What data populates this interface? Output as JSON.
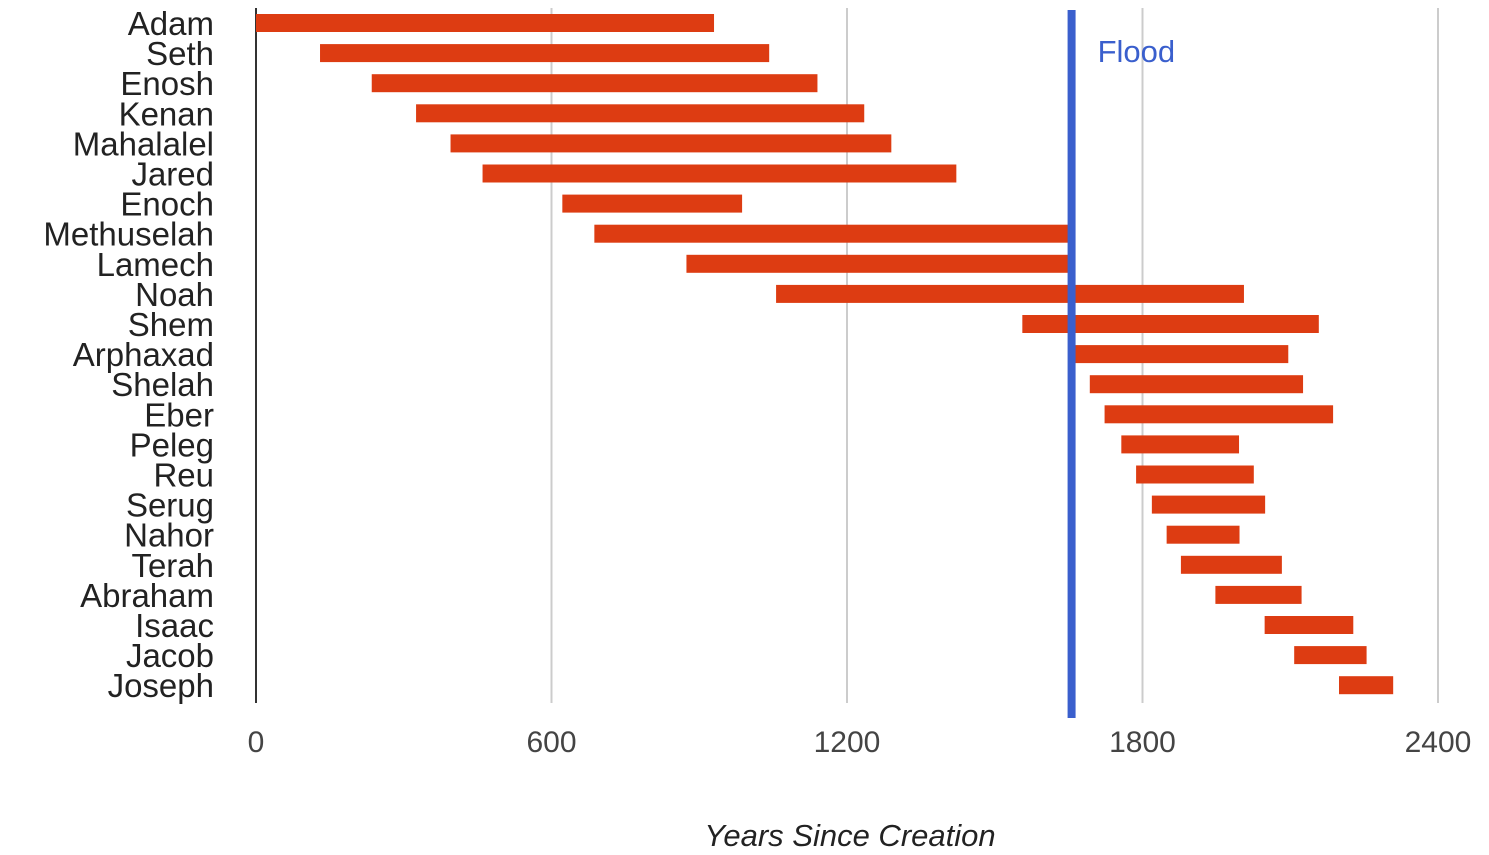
{
  "colors": {
    "bar": "#dd3c12",
    "flood_line": "#3a5fcd",
    "grid": "#cccccc",
    "text": "#222222"
  },
  "chart_data": {
    "type": "bar",
    "orientation": "horizontal",
    "subtype": "floating-range",
    "title": "",
    "xlabel": "Years Since Creation",
    "ylabel": "",
    "xlim": [
      0,
      2400
    ],
    "xticks": [
      0,
      600,
      1200,
      1800,
      2400
    ],
    "xtick_labels": [
      "0",
      "600",
      "1200",
      "1800",
      "2400"
    ],
    "grid": true,
    "categories": [
      "Adam",
      "Seth",
      "Enosh",
      "Kenan",
      "Mahalalel",
      "Jared",
      "Enoch",
      "Methuselah",
      "Lamech",
      "Noah",
      "Shem",
      "Arphaxad",
      "Shelah",
      "Eber",
      "Peleg",
      "Reu",
      "Serug",
      "Nahor",
      "Terah",
      "Abraham",
      "Isaac",
      "Jacob",
      "Joseph"
    ],
    "start": [
      0,
      130,
      235,
      325,
      395,
      460,
      622,
      687,
      874,
      1056,
      1556,
      1658,
      1693,
      1723,
      1757,
      1787,
      1819,
      1849,
      1878,
      1948,
      2048,
      2108,
      2199
    ],
    "end": [
      930,
      1042,
      1140,
      1235,
      1290,
      1422,
      987,
      1656,
      1656,
      2006,
      2158,
      2096,
      2126,
      2187,
      1996,
      2026,
      2049,
      1997,
      2083,
      2123,
      2228,
      2255,
      2309
    ],
    "reference_lines": [
      {
        "label": "Flood",
        "x": 1656
      }
    ]
  }
}
